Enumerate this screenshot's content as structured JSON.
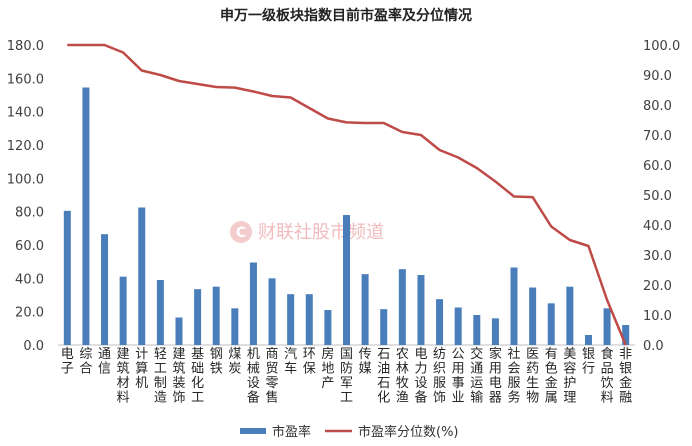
{
  "chart_data": {
    "type": "bar",
    "title": "申万一级板块指数目前市盈率及分位情况",
    "watermark": "财联社股市频道",
    "categories": [
      "电子",
      "综合",
      "通信",
      "建筑材料",
      "计算机",
      "轻工制造",
      "建筑装饰",
      "基础化工",
      "钢铁",
      "煤炭",
      "机械设备",
      "商贸零售",
      "汽车",
      "环保",
      "房地产",
      "国防军工",
      "传媒",
      "石油石化",
      "农林牧渔",
      "电力设备",
      "纺织服饰",
      "公用事业",
      "交通运输",
      "家用电器",
      "社会服务",
      "医药生物",
      "有色金属",
      "美容护理",
      "银行",
      "食品饮料",
      "非银金融"
    ],
    "series": [
      {
        "name": "市盈率",
        "type": "bar",
        "axis": "left",
        "color": "#4a7ebb",
        "values": [
          80.5,
          154.5,
          66.5,
          41.0,
          82.5,
          39.0,
          16.5,
          33.5,
          35.0,
          22.0,
          49.5,
          40.0,
          30.5,
          30.5,
          21.0,
          78.0,
          42.5,
          21.5,
          45.5,
          42.0,
          27.5,
          22.5,
          18.0,
          16.0,
          46.5,
          34.5,
          25.0,
          35.0,
          6.0,
          22.0,
          12.0
        ]
      },
      {
        "name": "市盈率分位数(%)",
        "type": "line",
        "axis": "right",
        "color": "#be4b48",
        "values": [
          100.0,
          100.0,
          100.0,
          97.5,
          91.5,
          90.0,
          88.0,
          87.0,
          86.0,
          85.8,
          84.5,
          83.0,
          82.5,
          79.0,
          75.5,
          74.2,
          74.0,
          74.0,
          71.0,
          70.0,
          65.0,
          62.5,
          59.0,
          54.5,
          49.5,
          49.3,
          39.5,
          35.0,
          33.0,
          15.0,
          0.0
        ]
      }
    ],
    "y_left": {
      "min": 0,
      "max": 180,
      "step": 20,
      "decimals": 1
    },
    "y_right": {
      "min": 0,
      "max": 100,
      "step": 10,
      "decimals": 1
    },
    "grid": false,
    "legend": {
      "position": "bottom-center"
    }
  }
}
